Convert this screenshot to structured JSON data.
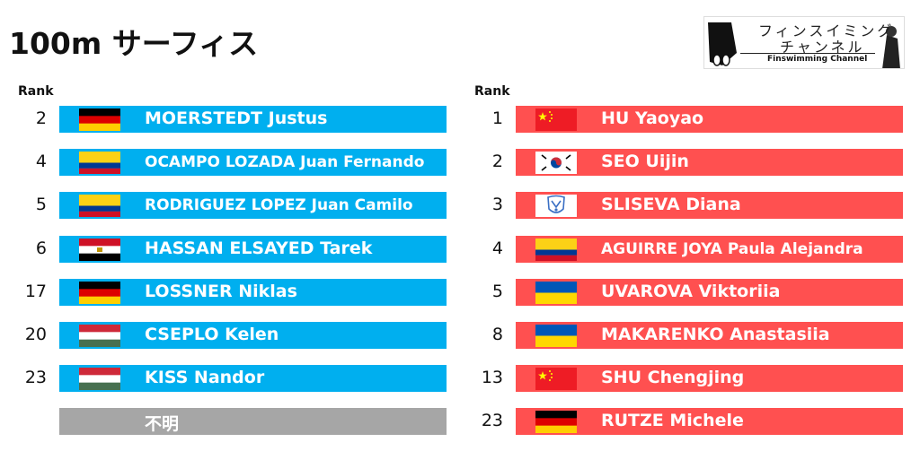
{
  "title": "100m サーフィス",
  "logo": {
    "line1": "フィンスイミング",
    "line2": "チャンネル",
    "subtitle": "Finswimming Channel"
  },
  "rank_header": "Rank",
  "colors": {
    "men_bar": "#00afef",
    "women_bar": "#ff5050",
    "unknown_bar": "#a6a6a6"
  },
  "men": [
    {
      "rank": "2",
      "flag": "germany",
      "name": "MOERSTEDT Justus"
    },
    {
      "rank": "4",
      "flag": "colombia",
      "name": "OCAMPO LOZADA Juan Fernando"
    },
    {
      "rank": "5",
      "flag": "colombia",
      "name": "RODRIGUEZ LOPEZ Juan Camilo"
    },
    {
      "rank": "6",
      "flag": "egypt",
      "name": "HASSAN ELSAYED Tarek"
    },
    {
      "rank": "17",
      "flag": "germany",
      "name": "LOSSNER Niklas"
    },
    {
      "rank": "20",
      "flag": "hungary",
      "name": "CSEPLO Kelen"
    },
    {
      "rank": "23",
      "flag": "hungary",
      "name": "KISS Nandor"
    },
    {
      "rank": "",
      "flag": "",
      "name": "不明"
    }
  ],
  "women": [
    {
      "rank": "1",
      "flag": "china",
      "name": "HU Yaoyao"
    },
    {
      "rank": "2",
      "flag": "south-korea",
      "name": "SEO Uijin"
    },
    {
      "rank": "3",
      "flag": "neutral-emblem",
      "name": "SLISEVA Diana"
    },
    {
      "rank": "4",
      "flag": "colombia",
      "name": "AGUIRRE JOYA Paula Alejandra"
    },
    {
      "rank": "5",
      "flag": "ukraine",
      "name": "UVAROVA Viktoriia"
    },
    {
      "rank": "8",
      "flag": "ukraine",
      "name": "MAKARENKO Anastasiia"
    },
    {
      "rank": "13",
      "flag": "china",
      "name": "SHU Chengjing"
    },
    {
      "rank": "23",
      "flag": "germany",
      "name": "RUTZE Michele"
    }
  ]
}
